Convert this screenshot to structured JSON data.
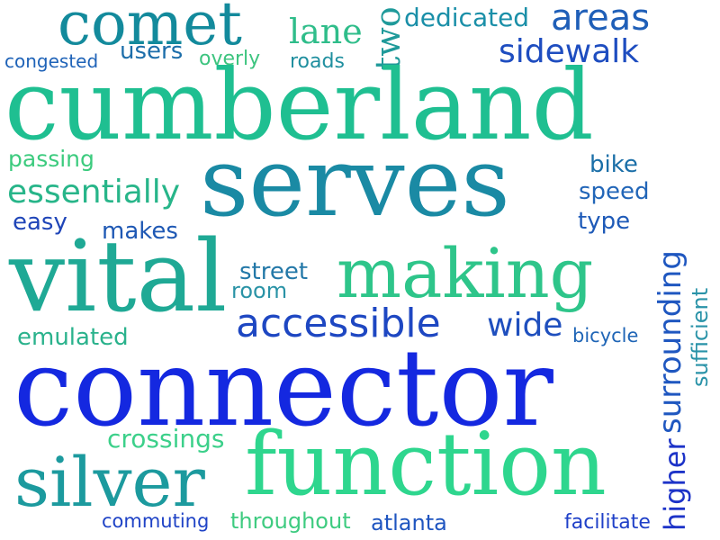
{
  "words": {
    "comet": {
      "text": "comet",
      "color": "#138a9c"
    },
    "dedicated": {
      "text": "dedicated",
      "color": "#1a8fa8"
    },
    "areas": {
      "text": "areas",
      "color": "#1f5fb8"
    },
    "lane": {
      "text": "lane",
      "color": "#2fbd8a"
    },
    "two": {
      "text": "two",
      "color": "#1f9a9a"
    },
    "users": {
      "text": "users",
      "color": "#1d6eaa"
    },
    "congested": {
      "text": "congested",
      "color": "#1f63b8"
    },
    "overly": {
      "text": "overly",
      "color": "#3dc47f"
    },
    "roads": {
      "text": "roads",
      "color": "#1f8f9f"
    },
    "sidewalk": {
      "text": "sidewalk",
      "color": "#1e4dc0"
    },
    "cumberland": {
      "text": "cumberland",
      "color": "#1fbf91"
    },
    "passing": {
      "text": "passing",
      "color": "#3ccb7e"
    },
    "serves": {
      "text": "serves",
      "color": "#1a8aa4"
    },
    "bike": {
      "text": "bike",
      "color": "#1b6fa8"
    },
    "essentially": {
      "text": "essentially",
      "color": "#27b589"
    },
    "speed": {
      "text": "speed",
      "color": "#2266b8"
    },
    "easy": {
      "text": "easy",
      "color": "#1f45b8"
    },
    "makes": {
      "text": "makes",
      "color": "#1e58b4"
    },
    "type": {
      "text": "type",
      "color": "#1e5ab8"
    },
    "surrounding": {
      "text": "surrounding",
      "color": "#1f57c0"
    },
    "sufficient": {
      "text": "sufficient",
      "color": "#2a93a8"
    },
    "vital": {
      "text": "vital",
      "color": "#1fa995"
    },
    "street": {
      "text": "street",
      "color": "#2378a8"
    },
    "room": {
      "text": "room",
      "color": "#2a93a6"
    },
    "making": {
      "text": "making",
      "color": "#2ec58a"
    },
    "accessible": {
      "text": "accessible",
      "color": "#1e47c2"
    },
    "wide": {
      "text": "wide",
      "color": "#1f4fbe"
    },
    "emulated": {
      "text": "emulated",
      "color": "#2ab28c"
    },
    "bicycle": {
      "text": "bicycle",
      "color": "#1f65b6"
    },
    "connector": {
      "text": "connector",
      "color": "#1428e0"
    },
    "crossings": {
      "text": "crossings",
      "color": "#3cd08a"
    },
    "higher": {
      "text": "higher",
      "color": "#1d33c8"
    },
    "silver": {
      "text": "silver",
      "color": "#1c9a9e"
    },
    "function": {
      "text": "function",
      "color": "#2ed68e"
    },
    "commuting": {
      "text": "commuting",
      "color": "#1f43c6"
    },
    "throughout": {
      "text": "throughout",
      "color": "#3ecb80"
    },
    "atlanta": {
      "text": "atlanta",
      "color": "#1f55c0"
    },
    "facilitate": {
      "text": "facilitate",
      "color": "#1f40c8"
    }
  }
}
